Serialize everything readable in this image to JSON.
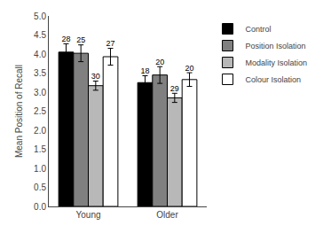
{
  "chart_data": {
    "type": "bar",
    "categories": [
      "Young",
      "Older"
    ],
    "series": [
      {
        "name": "Control",
        "color": "#000000",
        "values": [
          4.05,
          3.25
        ],
        "errors": [
          0.22,
          0.18
        ],
        "labels": [
          "28",
          "18"
        ]
      },
      {
        "name": "Position Isolation",
        "color": "#808080",
        "values": [
          4.02,
          3.45
        ],
        "errors": [
          0.22,
          0.22
        ],
        "labels": [
          "25",
          "20"
        ]
      },
      {
        "name": "Modality Isolation",
        "color": "#b8b8b8",
        "values": [
          3.17,
          2.85
        ],
        "errors": [
          0.12,
          0.12
        ],
        "labels": [
          "30",
          "29"
        ]
      },
      {
        "name": "Colour Isolation",
        "color": "#ffffff",
        "values": [
          3.93,
          3.33
        ],
        "errors": [
          0.22,
          0.18
        ],
        "labels": [
          "27",
          "20"
        ]
      }
    ],
    "ylabel": "Mean Position of Recall",
    "ylim": [
      0.0,
      5.0
    ],
    "yticks": [
      {
        "value": 0.0,
        "label": "0.0"
      },
      0.5,
      {
        "value": 1.0,
        "label": "1.0"
      },
      1.5,
      {
        "value": 2.0,
        "label": "2.0"
      },
      2.5,
      {
        "value": 3.0,
        "label": "3.0"
      },
      3.5,
      {
        "value": 4.0,
        "label": "4.0"
      },
      4.5,
      {
        "value": 5.0,
        "label": "5.0"
      }
    ],
    "legend": "right",
    "grid": false
  }
}
